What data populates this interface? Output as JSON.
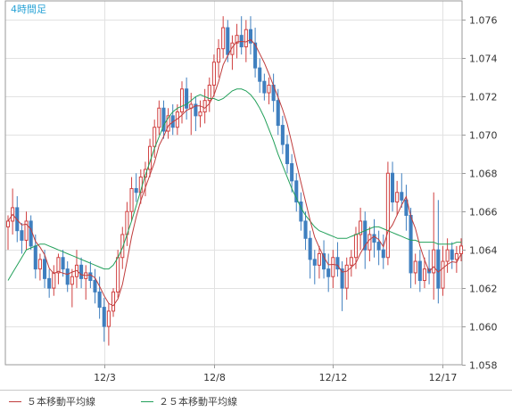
{
  "chart_data": {
    "type": "candlestick",
    "title": "4時間足",
    "ylim": [
      1.058,
      1.077
    ],
    "y_ticks": [
      "1.058",
      "1.060",
      "1.062",
      "1.064",
      "1.066",
      "1.068",
      "1.070",
      "1.072",
      "1.074",
      "1.076"
    ],
    "x_tick_labels": [
      {
        "index": 21,
        "label": "12/3"
      },
      {
        "index": 45,
        "label": "12/8"
      },
      {
        "index": 71,
        "label": "12/12"
      },
      {
        "index": 95,
        "label": "12/17"
      }
    ],
    "grid": true,
    "colors": {
      "up": "#d04040",
      "down": "#3f7fbf",
      "ma5": "#c03c3c",
      "ma25": "#22a05a"
    },
    "candles_ohlc": [
      [
        1.0652,
        1.0658,
        1.064,
        1.0655
      ],
      [
        1.0655,
        1.0672,
        1.0648,
        1.0662
      ],
      [
        1.0662,
        1.0668,
        1.0644,
        1.065
      ],
      [
        1.065,
        1.0654,
        1.0638,
        1.0645
      ],
      [
        1.0645,
        1.066,
        1.064,
        1.0655
      ],
      [
        1.0655,
        1.0658,
        1.064,
        1.0642
      ],
      [
        1.0642,
        1.0648,
        1.0625,
        1.063
      ],
      [
        1.063,
        1.0638,
        1.0624,
        1.0635
      ],
      [
        1.0635,
        1.064,
        1.062,
        1.0625
      ],
      [
        1.0625,
        1.063,
        1.0615,
        1.062
      ],
      [
        1.062,
        1.0632,
        1.0616,
        1.0628
      ],
      [
        1.0628,
        1.0638,
        1.0622,
        1.0636
      ],
      [
        1.0636,
        1.064,
        1.0626,
        1.063
      ],
      [
        1.063,
        1.0634,
        1.0618,
        1.0622
      ],
      [
        1.0622,
        1.063,
        1.061,
        1.0626
      ],
      [
        1.0626,
        1.064,
        1.062,
        1.0632
      ],
      [
        1.0632,
        1.0636,
        1.062,
        1.0625
      ],
      [
        1.0625,
        1.0632,
        1.0614,
        1.0628
      ],
      [
        1.0628,
        1.0634,
        1.062,
        1.0624
      ],
      [
        1.0624,
        1.063,
        1.0612,
        1.0618
      ],
      [
        1.0618,
        1.0626,
        1.0604,
        1.061
      ],
      [
        1.061,
        1.0615,
        1.0592,
        1.06
      ],
      [
        1.06,
        1.0612,
        1.059,
        1.0608
      ],
      [
        1.0608,
        1.062,
        1.0605,
        1.0618
      ],
      [
        1.0618,
        1.064,
        1.0615,
        1.0636
      ],
      [
        1.0636,
        1.0652,
        1.063,
        1.0648
      ],
      [
        1.0648,
        1.0665,
        1.0642,
        1.066
      ],
      [
        1.066,
        1.0678,
        1.0655,
        1.0672
      ],
      [
        1.0672,
        1.068,
        1.0665,
        1.067
      ],
      [
        1.067,
        1.0682,
        1.0664,
        1.0678
      ],
      [
        1.0678,
        1.0686,
        1.0668,
        1.0682
      ],
      [
        1.0682,
        1.0698,
        1.0678,
        1.0694
      ],
      [
        1.0694,
        1.0708,
        1.0688,
        1.0704
      ],
      [
        1.0704,
        1.0718,
        1.07,
        1.0714
      ],
      [
        1.0714,
        1.0718,
        1.0698,
        1.0702
      ],
      [
        1.0702,
        1.0714,
        1.0698,
        1.071
      ],
      [
        1.071,
        1.0716,
        1.07,
        1.0704
      ],
      [
        1.0704,
        1.0716,
        1.07,
        1.0712
      ],
      [
        1.0712,
        1.0728,
        1.0706,
        1.0724
      ],
      [
        1.0724,
        1.073,
        1.0708,
        1.0714
      ],
      [
        1.0714,
        1.0722,
        1.07,
        1.0716
      ],
      [
        1.0716,
        1.072,
        1.0702,
        1.071
      ],
      [
        1.071,
        1.0718,
        1.0704,
        1.0712
      ],
      [
        1.0712,
        1.0724,
        1.0706,
        1.0718
      ],
      [
        1.0718,
        1.073,
        1.0712,
        1.0726
      ],
      [
        1.0726,
        1.0742,
        1.072,
        1.0738
      ],
      [
        1.0738,
        1.075,
        1.073,
        1.0745
      ],
      [
        1.0745,
        1.0762,
        1.074,
        1.0756
      ],
      [
        1.0756,
        1.076,
        1.0738,
        1.0742
      ],
      [
        1.0742,
        1.0752,
        1.0734,
        1.0748
      ],
      [
        1.0748,
        1.0758,
        1.074,
        1.0752
      ],
      [
        1.0752,
        1.0762,
        1.0742,
        1.0746
      ],
      [
        1.0746,
        1.076,
        1.0738,
        1.0755
      ],
      [
        1.0755,
        1.0762,
        1.0742,
        1.0748
      ],
      [
        1.0748,
        1.0756,
        1.073,
        1.0735
      ],
      [
        1.0735,
        1.074,
        1.0722,
        1.0728
      ],
      [
        1.0728,
        1.0732,
        1.0718,
        1.0722
      ],
      [
        1.0722,
        1.073,
        1.0716,
        1.0726
      ],
      [
        1.0726,
        1.0732,
        1.0712,
        1.0718
      ],
      [
        1.0718,
        1.0724,
        1.07,
        1.0705
      ],
      [
        1.0705,
        1.071,
        1.069,
        1.0695
      ],
      [
        1.0695,
        1.07,
        1.068,
        1.0685
      ],
      [
        1.0685,
        1.069,
        1.067,
        1.0676
      ],
      [
        1.0676,
        1.068,
        1.066,
        1.0665
      ],
      [
        1.0665,
        1.067,
        1.065,
        1.0655
      ],
      [
        1.0655,
        1.066,
        1.064,
        1.0646
      ],
      [
        1.0646,
        1.065,
        1.0625,
        1.0635
      ],
      [
        1.0635,
        1.064,
        1.0622,
        1.0632
      ],
      [
        1.0632,
        1.0642,
        1.0625,
        1.0638
      ],
      [
        1.0638,
        1.0645,
        1.0625,
        1.063
      ],
      [
        1.063,
        1.0638,
        1.0618,
        1.0626
      ],
      [
        1.0626,
        1.064,
        1.062,
        1.0636
      ],
      [
        1.0636,
        1.0644,
        1.0626,
        1.063
      ],
      [
        1.063,
        1.0634,
        1.0608,
        1.062
      ],
      [
        1.062,
        1.0636,
        1.0614,
        1.0632
      ],
      [
        1.0632,
        1.064,
        1.0626,
        1.0636
      ],
      [
        1.0636,
        1.0652,
        1.063,
        1.0648
      ],
      [
        1.0648,
        1.0662,
        1.064,
        1.0655
      ],
      [
        1.0655,
        1.066,
        1.063,
        1.064
      ],
      [
        1.064,
        1.0652,
        1.0634,
        1.0648
      ],
      [
        1.0648,
        1.0656,
        1.0636,
        1.0644
      ],
      [
        1.0644,
        1.065,
        1.0632,
        1.064
      ],
      [
        1.064,
        1.0648,
        1.063,
        1.0636
      ],
      [
        1.0636,
        1.0686,
        1.0632,
        1.068
      ],
      [
        1.068,
        1.0686,
        1.066,
        1.0665
      ],
      [
        1.0665,
        1.0676,
        1.0658,
        1.067
      ],
      [
        1.067,
        1.068,
        1.0662,
        1.0666
      ],
      [
        1.0666,
        1.0674,
        1.065,
        1.0658
      ],
      [
        1.0658,
        1.0662,
        1.062,
        1.0628
      ],
      [
        1.0628,
        1.0638,
        1.0622,
        1.0634
      ],
      [
        1.0634,
        1.064,
        1.0618,
        1.0624
      ],
      [
        1.0624,
        1.0636,
        1.062,
        1.063
      ],
      [
        1.063,
        1.064,
        1.0622,
        1.0628
      ],
      [
        1.0628,
        1.067,
        1.0614,
        1.064
      ],
      [
        1.064,
        1.0666,
        1.0612,
        1.062
      ],
      [
        1.062,
        1.0642,
        1.0616,
        1.0634
      ],
      [
        1.0634,
        1.0646,
        1.0628,
        1.064
      ],
      [
        1.064,
        1.0644,
        1.063,
        1.0635
      ],
      [
        1.0635,
        1.0642,
        1.0628,
        1.0638
      ],
      [
        1.0638,
        1.0646,
        1.0634,
        1.0642
      ]
    ],
    "ma25": [
      1.0624,
      1.0628,
      1.0632,
      1.0636,
      1.064,
      1.0641,
      1.0642,
      1.0643,
      1.0643,
      1.0642,
      1.0641,
      1.064,
      1.0639,
      1.0638,
      1.0637,
      1.0636,
      1.0635,
      1.0634,
      1.0633,
      1.0632,
      1.0631,
      1.063,
      1.063,
      1.0632,
      1.0636,
      1.0641,
      1.0648,
      1.0655,
      1.0663,
      1.0671,
      1.0679,
      1.0686,
      1.0693,
      1.0699,
      1.0705,
      1.0709,
      1.0712,
      1.0714,
      1.0715,
      1.0716,
      1.0718,
      1.072,
      1.0721,
      1.072,
      1.0719,
      1.0719,
      1.0718,
      1.0719,
      1.0721,
      1.0723,
      1.0724,
      1.0724,
      1.0723,
      1.0721,
      1.0718,
      1.0714,
      1.0709,
      1.0703,
      1.0697,
      1.069,
      1.0684,
      1.0678,
      1.0672,
      1.0667,
      1.0662,
      1.0658,
      1.0655,
      1.0652,
      1.065,
      1.0649,
      1.0648,
      1.0647,
      1.0646,
      1.0646,
      1.0646,
      1.0647,
      1.0648,
      1.0649,
      1.065,
      1.0651,
      1.0652,
      1.0652,
      1.0651,
      1.065,
      1.0649,
      1.0648,
      1.0647,
      1.0646,
      1.0645,
      1.0645,
      1.0644,
      1.0644,
      1.0644,
      1.0644,
      1.0643,
      1.0643,
      1.0643,
      1.0643,
      1.0644,
      1.0644
    ]
  },
  "legend": {
    "ma5_label": "５本移動平均線",
    "ma25_label": "２５本移動平均線"
  }
}
